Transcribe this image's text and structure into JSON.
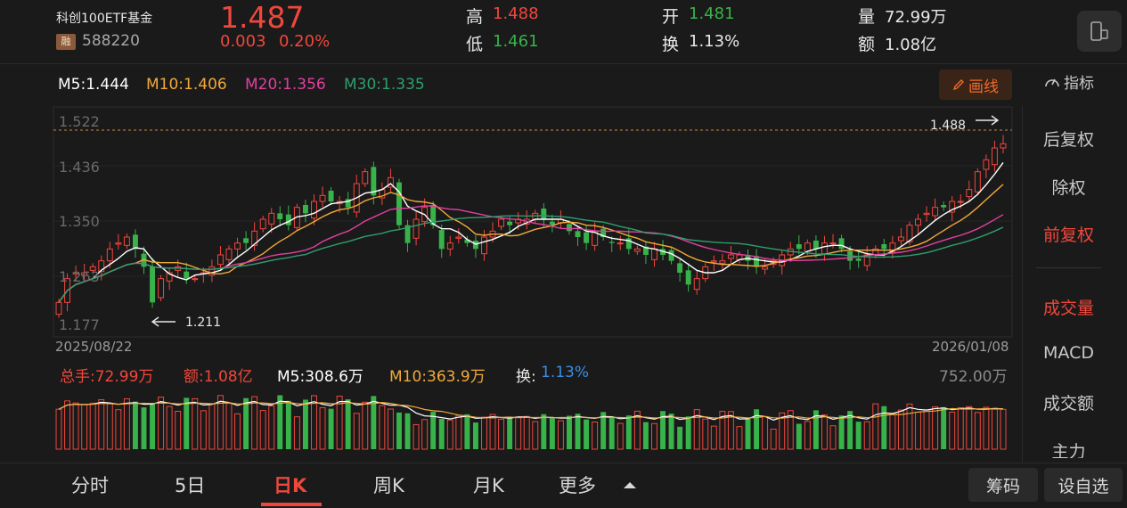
{
  "header": {
    "name": "科创100ETF基金",
    "badge": "融",
    "code": "588220",
    "price": "1.487",
    "change": "0.003",
    "change_pct": "0.20%",
    "stats": [
      {
        "label": "高",
        "value": "1.488",
        "color": "red"
      },
      {
        "label": "低",
        "value": "1.461",
        "color": "green"
      },
      {
        "label": "开",
        "value": "1.481",
        "color": "green"
      },
      {
        "label": "换",
        "value": "1.13%",
        "color": "white"
      },
      {
        "label": "量",
        "value": "72.99万",
        "color": "white"
      },
      {
        "label": "额",
        "value": "1.08亿",
        "color": "white"
      }
    ]
  },
  "ma": {
    "m5": "M5:1.444",
    "m10": "M10:1.406",
    "m20": "M20:1.356",
    "m30": "M30:1.335",
    "colors": {
      "m5": "#ffffff",
      "m10": "#f2a93b",
      "m20": "#e040a0",
      "m30": "#2f9e6e"
    }
  },
  "toolbar": {
    "draw_label": "画线",
    "indicator_label": "指标"
  },
  "chart_data": {
    "type": "candlestick",
    "y_ticks": [
      "1.522",
      "1.436",
      "1.350",
      "1.263",
      "1.177"
    ],
    "date_start": "2025/08/22",
    "date_end": "2026/01/08",
    "high_marker": "1.488",
    "low_marker": "1.211",
    "ylim": [
      1.177,
      1.522
    ],
    "closes": [
      1.22,
      1.26,
      1.27,
      1.27,
      1.28,
      1.29,
      1.31,
      1.32,
      1.33,
      1.31,
      1.28,
      1.22,
      1.26,
      1.27,
      1.28,
      1.26,
      1.26,
      1.27,
      1.28,
      1.3,
      1.31,
      1.32,
      1.32,
      1.34,
      1.36,
      1.37,
      1.36,
      1.35,
      1.38,
      1.37,
      1.39,
      1.4,
      1.39,
      1.39,
      1.38,
      1.42,
      1.44,
      1.4,
      1.41,
      1.43,
      1.35,
      1.32,
      1.36,
      1.38,
      1.35,
      1.31,
      1.32,
      1.33,
      1.32,
      1.31,
      1.33,
      1.34,
      1.36,
      1.35,
      1.36,
      1.36,
      1.37,
      1.36,
      1.35,
      1.36,
      1.34,
      1.33,
      1.32,
      1.34,
      1.33,
      1.32,
      1.32,
      1.31,
      1.31,
      1.3,
      1.31,
      1.3,
      1.29,
      1.27,
      1.25,
      1.26,
      1.28,
      1.29,
      1.29,
      1.3,
      1.3,
      1.29,
      1.28,
      1.28,
      1.29,
      1.3,
      1.31,
      1.31,
      1.32,
      1.31,
      1.32,
      1.32,
      1.31,
      1.29,
      1.29,
      1.3,
      1.31,
      1.31,
      1.32,
      1.33,
      1.35,
      1.36,
      1.37,
      1.38,
      1.38,
      1.39,
      1.39,
      1.41,
      1.44,
      1.46,
      1.48,
      1.487
    ],
    "vol_legend": {
      "total": "总手:72.99万",
      "amount": "额:1.08亿",
      "m5": "M5:308.6万",
      "m10": "M10:363.9万",
      "turnover_label": "换:",
      "turnover": "1.13%",
      "max": "752.00万"
    }
  },
  "side_menu": [
    "后复权",
    "除权",
    "前复权",
    "成交量",
    "MACD",
    "成交额",
    "主力"
  ],
  "tabs": [
    "分时",
    "5日",
    "日K",
    "周K",
    "月K",
    "更多"
  ],
  "bottom_buttons": [
    "筹码",
    "设自选"
  ]
}
